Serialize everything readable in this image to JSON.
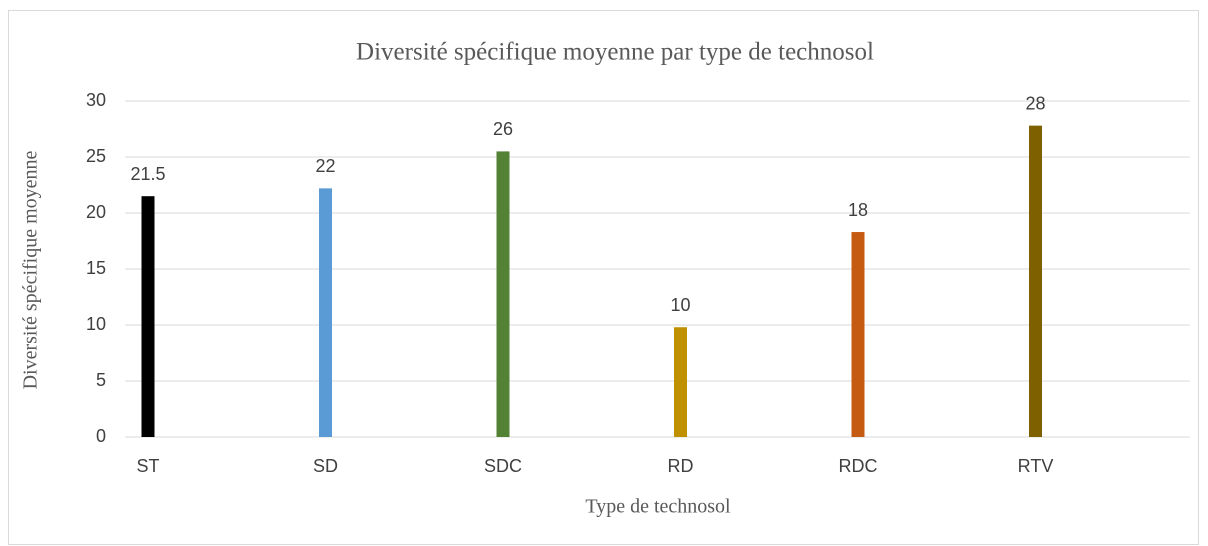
{
  "chart_data": {
    "type": "bar",
    "title": "Diversité spécifique moyenne par type de technosol",
    "x_label": "Type de technosol",
    "y_label": "Diversité spécifique moyenne",
    "categories": [
      "ST",
      "SD",
      "SDC",
      "RD",
      "RDC",
      "RTV"
    ],
    "values": [
      21.5,
      22.2,
      25.5,
      9.8,
      18.3,
      27.8
    ],
    "value_labels": [
      "21.5",
      "22",
      "26",
      "10",
      "18",
      "28"
    ],
    "colors": [
      "#000000",
      "#5b9bd5",
      "#548235",
      "#bf9000",
      "#c55a11",
      "#7f6000"
    ],
    "ylim": [
      0,
      30
    ],
    "yticks": [
      0,
      5,
      10,
      15,
      20,
      25,
      30
    ],
    "grid": true
  }
}
